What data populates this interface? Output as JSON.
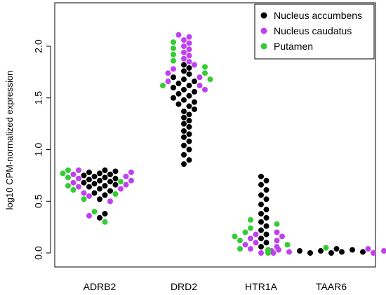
{
  "chart_data": {
    "type": "scatter",
    "subtype": "beeswarm",
    "title": "",
    "xlabel": "",
    "ylabel": "log10 CPM-normalized expression",
    "categories": [
      "ADRB2",
      "DRD2",
      "HTR1A",
      "TAAR6"
    ],
    "ylim": [
      -0.02,
      2.2
    ],
    "yticks": [
      0.0,
      0.5,
      1.0,
      1.5,
      2.0
    ],
    "ytick_labels": [
      "0.0",
      "0.5",
      "1.0",
      "1.5",
      "2.0"
    ],
    "grid": false,
    "legend_position": "top-right",
    "series": [
      {
        "name": "Nucleus accumbens",
        "color": "#000000",
        "groups": {
          "ADRB2": [
            0.34,
            0.38,
            0.52,
            0.56,
            0.58,
            0.6,
            0.62,
            0.64,
            0.65,
            0.66,
            0.67,
            0.68,
            0.69,
            0.7,
            0.71,
            0.72,
            0.73,
            0.74,
            0.75,
            0.76,
            0.77,
            0.78,
            0.79,
            0.8
          ],
          "DRD2": [
            0.86,
            0.9,
            0.95,
            1.0,
            1.04,
            1.08,
            1.12,
            1.15,
            1.18,
            1.22,
            1.25,
            1.28,
            1.31,
            1.34,
            1.37,
            1.39,
            1.42,
            1.44,
            1.46,
            1.48,
            1.5,
            1.52,
            1.54,
            1.56,
            1.58,
            1.6,
            1.62,
            1.64,
            1.66,
            1.68,
            1.7,
            1.73,
            1.76,
            1.79,
            1.82
          ],
          "HTR1A": [
            0.06,
            0.1,
            0.14,
            0.18,
            0.22,
            0.26,
            0.3,
            0.34,
            0.38,
            0.42,
            0.47,
            0.52,
            0.56,
            0.61,
            0.66,
            0.7,
            0.74
          ],
          "TAAR6": [
            0.0,
            0.01,
            0.02,
            0.03,
            0.04,
            0.0,
            0.01,
            0.02
          ]
        }
      },
      {
        "name": "Nucleus caudatus",
        "color": "#c040f0",
        "groups": {
          "ADRB2": [
            0.36,
            0.5,
            0.55,
            0.58,
            0.62,
            0.64,
            0.66,
            0.68,
            0.7,
            0.72,
            0.74,
            0.76,
            0.78,
            0.8
          ],
          "DRD2": [
            1.58,
            1.62,
            1.66,
            1.7,
            1.74,
            1.78,
            1.82,
            1.85,
            1.88,
            1.91,
            1.94,
            1.97,
            2.0,
            2.03,
            2.06,
            2.09,
            2.11
          ],
          "HTR1A": [
            0.0,
            0.02,
            0.04,
            0.06,
            0.08,
            0.1,
            0.12,
            0.14,
            0.16,
            0.18,
            0.2
          ],
          "TAAR6": [
            0.0,
            0.01,
            0.02,
            0.03,
            0.04,
            0.0,
            0.01,
            0.02,
            0.03
          ]
        }
      },
      {
        "name": "Putamen",
        "color": "#33cc33",
        "groups": {
          "ADRB2": [
            0.3,
            0.4,
            0.52,
            0.57,
            0.61,
            0.65,
            0.69,
            0.73,
            0.77,
            0.8
          ],
          "DRD2": [
            1.62,
            1.68,
            1.74,
            1.8,
            1.86,
            1.92,
            1.98,
            2.04
          ],
          "HTR1A": [
            0.04,
            0.08,
            0.12,
            0.16,
            0.2,
            0.24,
            0.28,
            0.32
          ],
          "TAAR6": [
            0.0,
            0.01,
            0.02,
            0.03,
            0.05,
            0.01
          ]
        }
      }
    ]
  }
}
